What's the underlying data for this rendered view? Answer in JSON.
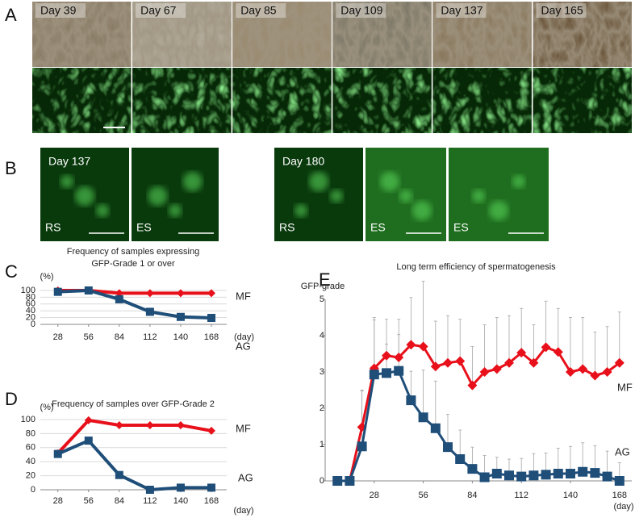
{
  "panels": {
    "A": {
      "label": "A",
      "days": [
        "Day 39",
        "Day 67",
        "Day 85",
        "Day 109",
        "Day 137",
        "Day 165"
      ]
    },
    "B": {
      "label": "B",
      "tiles": [
        {
          "day": "Day 137",
          "cell": "RS"
        },
        {
          "cell": "ES"
        },
        {
          "day": "Day 180",
          "cell": "RS"
        },
        {
          "cell": "ES"
        },
        {
          "cell": "ES"
        }
      ]
    }
  },
  "chart_data": [
    {
      "type": "line",
      "panel": "C",
      "title": [
        "Frequency of samples expressing",
        "GFP-Grade 1 or over"
      ],
      "y_unit": "(%)",
      "x_unit": "(day)",
      "x": [
        28,
        56,
        84,
        112,
        140,
        168
      ],
      "xlim": [
        12,
        182
      ],
      "xticks": [
        28,
        56,
        84,
        112,
        140,
        168
      ],
      "ylim": [
        0,
        100
      ],
      "yticks": [
        0,
        20,
        40,
        60,
        80,
        100
      ],
      "grid": true,
      "series": [
        {
          "name": "MF",
          "color": "#e8101a",
          "marker": "diamond",
          "values": [
            100,
            100,
            92,
            92,
            92,
            92
          ]
        },
        {
          "name": "AG",
          "color": "#1f4e79",
          "marker": "square",
          "values": [
            96,
            100,
            74,
            37,
            22,
            19
          ]
        }
      ]
    },
    {
      "type": "line",
      "panel": "D",
      "title": [
        "Frequency of samples over GFP-Grade 2"
      ],
      "y_unit": "(%)",
      "x_unit": "(day)",
      "x": [
        28,
        56,
        84,
        112,
        140,
        168
      ],
      "xlim": [
        12,
        182
      ],
      "xticks": [
        28,
        56,
        84,
        112,
        140,
        168
      ],
      "ylim": [
        0,
        100
      ],
      "yticks": [
        0,
        20,
        40,
        60,
        80,
        100
      ],
      "grid": true,
      "series": [
        {
          "name": "MF",
          "color": "#e8101a",
          "marker": "diamond",
          "values": [
            52,
            99,
            92,
            92,
            92,
            84
          ]
        },
        {
          "name": "AG",
          "color": "#1f4e79",
          "marker": "square",
          "values": [
            51,
            70,
            21,
            0,
            3,
            3
          ]
        }
      ]
    },
    {
      "type": "line",
      "panel": "E",
      "title": [
        "Long term efficiency of spermatogenesis"
      ],
      "y_unit": "GFP-grade",
      "x_unit": "(day)",
      "x": [
        7,
        14,
        21,
        28,
        35,
        42,
        49,
        56,
        63,
        70,
        77,
        84,
        91,
        98,
        105,
        112,
        119,
        126,
        133,
        140,
        147,
        154,
        161,
        168
      ],
      "xlim": [
        0,
        175
      ],
      "xticks": [
        28,
        56,
        84,
        112,
        140,
        168
      ],
      "ylim": [
        0,
        5
      ],
      "yticks": [
        0,
        1,
        2,
        3,
        4,
        5
      ],
      "grid": false,
      "series": [
        {
          "name": "MF",
          "color": "#e8101a",
          "marker": "diamond",
          "values": [
            0,
            0,
            1.48,
            3.1,
            3.45,
            3.4,
            3.75,
            3.7,
            3.15,
            3.25,
            3.3,
            2.63,
            3.0,
            3.08,
            3.25,
            3.53,
            3.25,
            3.68,
            3.55,
            3.0,
            3.08,
            2.9,
            3.0,
            3.25
          ],
          "errors": [
            0,
            0,
            1.0,
            1.4,
            1.0,
            1.05,
            1.3,
            1.8,
            1.25,
            1.3,
            1.15,
            1.07,
            1.3,
            1.42,
            1.3,
            1.22,
            1.05,
            1.27,
            1.2,
            1.5,
            1.42,
            1.2,
            1.25,
            1.4
          ]
        },
        {
          "name": "AG",
          "color": "#1f4e79",
          "marker": "square",
          "values": [
            0,
            0,
            0.95,
            2.93,
            2.97,
            3.03,
            2.22,
            1.75,
            1.45,
            0.93,
            0.6,
            0.33,
            0.1,
            0.2,
            0.15,
            0.12,
            0.15,
            0.17,
            0.2,
            0.2,
            0.25,
            0.22,
            0.12,
            0
          ],
          "errors": [
            0,
            0,
            1.55,
            1.5,
            0.8,
            1.0,
            0.8,
            1.3,
            1.3,
            0.9,
            0.8,
            0.6,
            0.6,
            0.45,
            0.45,
            0.5,
            0.6,
            0.6,
            0.7,
            0.75,
            0.8,
            0.75,
            0.7,
            0.5
          ]
        }
      ]
    }
  ]
}
